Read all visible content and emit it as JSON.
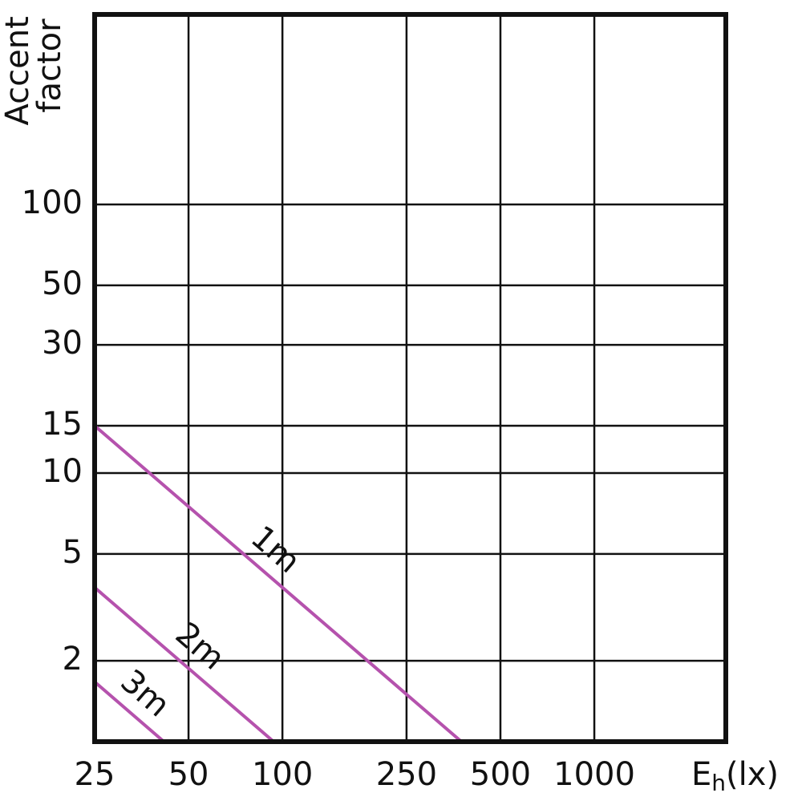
{
  "chart_data": {
    "type": "line",
    "y_label": [
      "Accent",
      "factor"
    ],
    "x_label": [
      "E",
      "h",
      "(lx)"
    ],
    "xscale": "log",
    "yscale": "log",
    "grid": true,
    "xlim": [
      25,
      2640
    ],
    "ylim": [
      1,
      510
    ],
    "xticks": [
      25,
      50,
      100,
      250,
      500,
      1000
    ],
    "yticks": [
      2,
      5,
      10,
      15,
      30,
      50,
      100
    ],
    "series": [
      {
        "name": "1m",
        "color": "#b552ad",
        "x": [
          25,
          375
        ],
        "values": [
          15,
          1
        ]
      },
      {
        "name": "2m",
        "color": "#b552ad",
        "x": [
          25,
          93.75
        ],
        "values": [
          3.75,
          1
        ]
      },
      {
        "name": "3m",
        "color": "#b552ad",
        "x": [
          25,
          41.7
        ],
        "values": [
          1.67,
          1
        ]
      }
    ]
  }
}
